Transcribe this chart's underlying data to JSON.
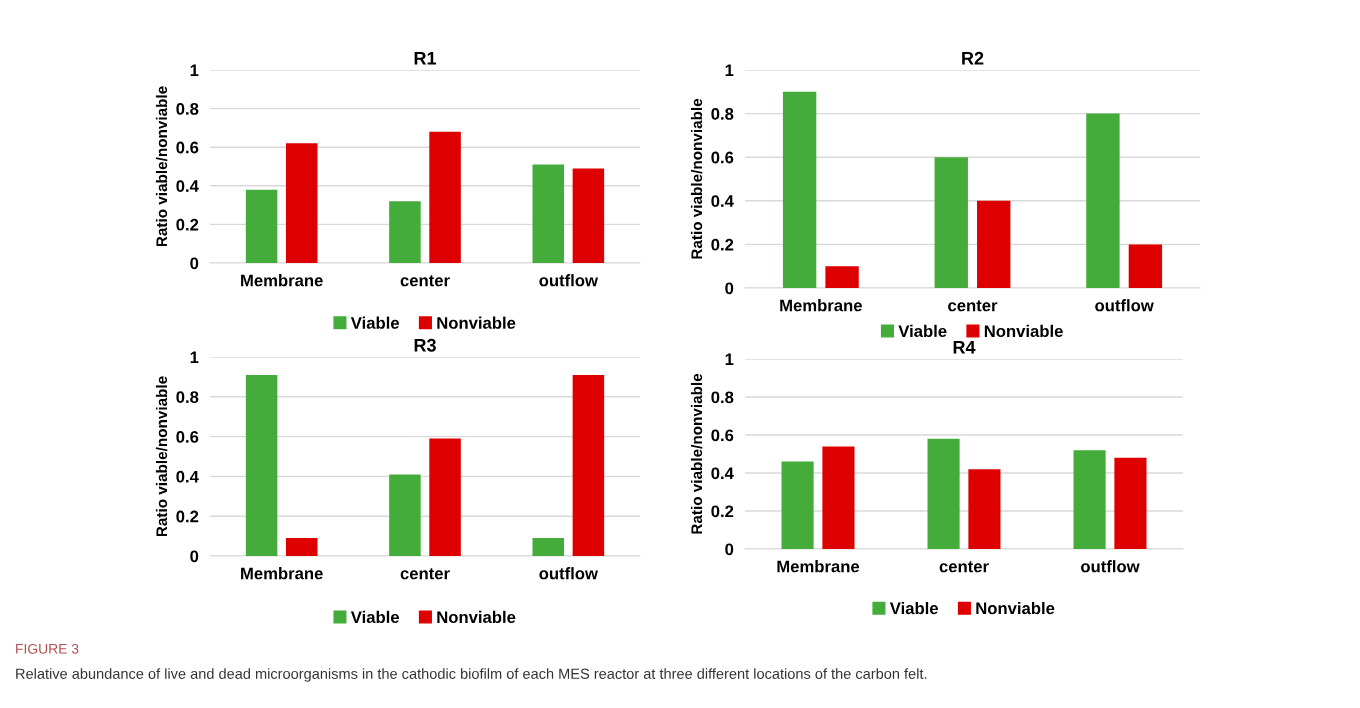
{
  "chart_data": [
    {
      "type": "bar",
      "title": "R1",
      "ylabel": "Ratio viable/nonviable",
      "categories": [
        "Membrane",
        "center",
        "outflow"
      ],
      "ylim": [
        0,
        1
      ],
      "yticks": [
        0,
        0.2,
        0.4,
        0.6,
        0.8,
        1
      ],
      "grid": "y",
      "legend": "bottom",
      "series": [
        {
          "name": "Viable",
          "color": "#43ac3a",
          "values": [
            0.38,
            0.32,
            0.51
          ]
        },
        {
          "name": "Nonviable",
          "color": "#de0000",
          "values": [
            0.62,
            0.68,
            0.49
          ]
        }
      ],
      "annotations": [
        "FIGURE 3",
        "Relative abundance of live and dead microorganisms in the cathodic biofilm of each MES reactor at three different locations of the carbon felt."
      ]
    },
    {
      "type": "bar",
      "title": "R2",
      "ylabel": "Ratio viable/nonviable",
      "categories": [
        "Membrane",
        "center",
        "outflow"
      ],
      "ylim": [
        0,
        1
      ],
      "yticks": [
        0,
        0.2,
        0.4,
        0.6,
        0.8,
        1
      ],
      "grid": "y",
      "legend": "bottom",
      "series": [
        {
          "name": "Viable",
          "color": "#43ac3a",
          "values": [
            0.9,
            0.6,
            0.8
          ]
        },
        {
          "name": "Nonviable",
          "color": "#de0000",
          "values": [
            0.1,
            0.4,
            0.2
          ]
        }
      ]
    },
    {
      "type": "bar",
      "title": "R3",
      "ylabel": "Ratio viable/nonviable",
      "categories": [
        "Membrane",
        "center",
        "outflow"
      ],
      "ylim": [
        0,
        1
      ],
      "yticks": [
        0,
        0.2,
        0.4,
        0.6,
        0.8,
        1
      ],
      "grid": "y",
      "legend": "bottom",
      "series": [
        {
          "name": "Viable",
          "color": "#43ac3a",
          "values": [
            0.91,
            0.41,
            0.09
          ]
        },
        {
          "name": "Nonviable",
          "color": "#de0000",
          "values": [
            0.09,
            0.59,
            0.91
          ]
        }
      ]
    },
    {
      "type": "bar",
      "title": "R4",
      "ylabel": "Ratio viable/nonviable",
      "categories": [
        "Membrane",
        "center",
        "outflow"
      ],
      "ylim": [
        0,
        1
      ],
      "yticks": [
        0,
        0.2,
        0.4,
        0.6,
        0.8,
        1
      ],
      "grid": "y",
      "legend": "bottom",
      "series": [
        {
          "name": "Viable",
          "color": "#43ac3a",
          "values": [
            0.46,
            0.58,
            0.52
          ]
        },
        {
          "name": "Nonviable",
          "color": "#de0000",
          "values": [
            0.54,
            0.42,
            0.48
          ]
        }
      ]
    }
  ]
}
